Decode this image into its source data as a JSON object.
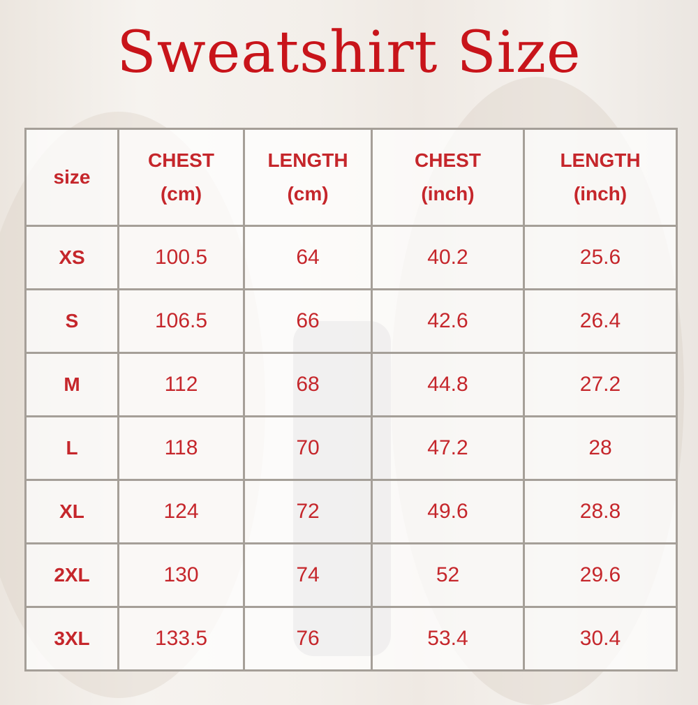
{
  "title": "Sweatshirt Size",
  "colors": {
    "accent": "#c8141a",
    "grid": "#a59f98"
  },
  "table": {
    "headers": [
      {
        "line1": "size",
        "line2": ""
      },
      {
        "line1": "CHEST",
        "line2": "(cm)"
      },
      {
        "line1": "LENGTH",
        "line2": "(cm)"
      },
      {
        "line1": "CHEST",
        "line2": "(inch)"
      },
      {
        "line1": "LENGTH",
        "line2": "(inch)"
      }
    ],
    "rows": [
      [
        "XS",
        "100.5",
        "64",
        "40.2",
        "25.6"
      ],
      [
        "S",
        "106.5",
        "66",
        "42.6",
        "26.4"
      ],
      [
        "M",
        "112",
        "68",
        "44.8",
        "27.2"
      ],
      [
        "L",
        "118",
        "70",
        "47.2",
        "28"
      ],
      [
        "XL",
        "124",
        "72",
        "49.6",
        "28.8"
      ],
      [
        "2XL",
        "130",
        "74",
        "52",
        "29.6"
      ],
      [
        "3XL",
        "133.5",
        "76",
        "53.4",
        "30.4"
      ]
    ]
  }
}
